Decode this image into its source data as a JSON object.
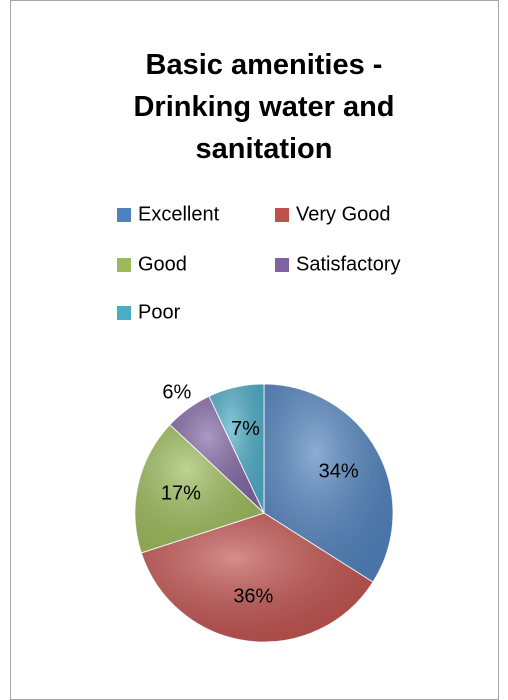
{
  "chart_data": {
    "type": "pie",
    "title": "Basic amenities - Drinking water and sanitation",
    "categories": [
      "Excellent",
      "Very Good",
      "Good",
      "Satisfactory",
      "Poor"
    ],
    "values": [
      34,
      36,
      17,
      6,
      7
    ],
    "value_labels": [
      "34%",
      "36%",
      "17%",
      "6%",
      "7%"
    ],
    "colors": [
      "#4f81bd",
      "#c0504d",
      "#9bbb59",
      "#8064a2",
      "#4bacc6"
    ],
    "legend": "top"
  }
}
